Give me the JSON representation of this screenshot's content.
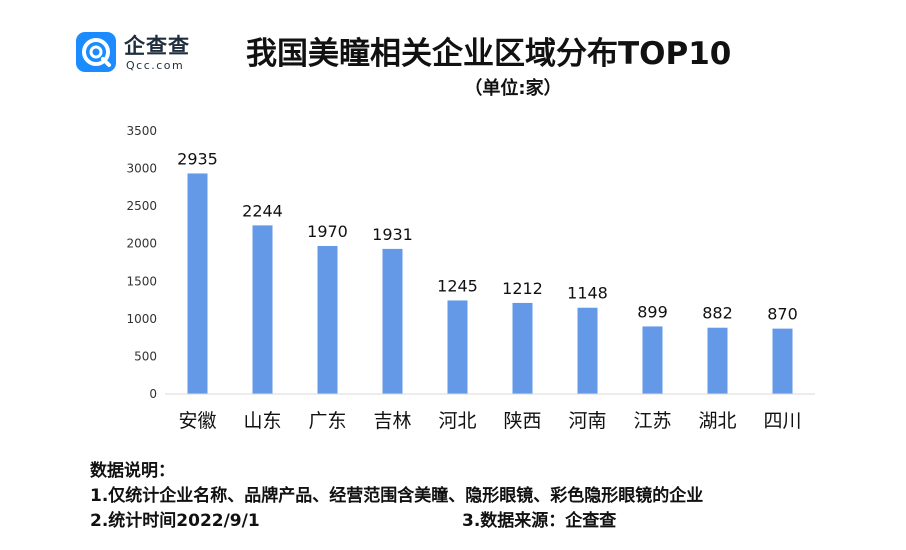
{
  "brand": {
    "name": "企查查",
    "domain_text": "Qcc.com",
    "icon": "qcc-logo-icon",
    "color": "#1a8cff"
  },
  "title": "我国美瞳相关企业区域分布TOP10",
  "subtitle": "（单位:家）",
  "chart_data": {
    "type": "bar",
    "title": "我国美瞳相关企业区域分布TOP10",
    "subtitle": "（单位:家）",
    "categories": [
      "安徽",
      "山东",
      "广东",
      "吉林",
      "河北",
      "陕西",
      "河南",
      "江苏",
      "湖北",
      "四川"
    ],
    "values": [
      2935,
      2244,
      1970,
      1931,
      1245,
      1212,
      1148,
      899,
      882,
      870
    ],
    "xlabel": "",
    "ylabel": "",
    "ylim": [
      0,
      3500
    ],
    "yticks": [
      "0",
      "500",
      "1000",
      "1500",
      "2000",
      "2500",
      "3000",
      "3500"
    ],
    "grid": false,
    "legend": "none",
    "bar_color": "#6399e6"
  },
  "notes": {
    "heading": "数据说明：",
    "line1": "1.仅统计企业名称、品牌产品、经营范围含美瞳、隐形眼镜、彩色隐形眼镜的企业",
    "line2": "2.统计时间2022/9/1",
    "line3": "3.数据来源：企查查"
  }
}
